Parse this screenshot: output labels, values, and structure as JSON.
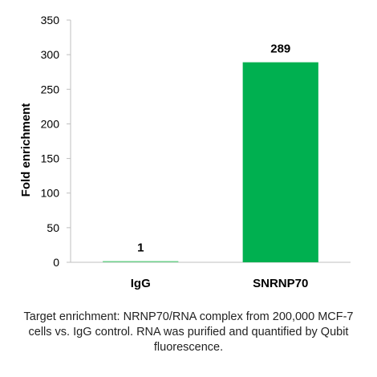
{
  "chart_data": {
    "type": "bar",
    "categories": [
      "IgG",
      "SNRNP70"
    ],
    "values": [
      1,
      289
    ],
    "data_labels": [
      "1",
      "289"
    ],
    "ylabel": "Fold enrichment",
    "xlabel": "",
    "ylim": [
      0,
      350
    ],
    "yticks": [
      0,
      50,
      100,
      150,
      200,
      250,
      300,
      350
    ],
    "ytick_labels": [
      "0",
      "50",
      "100",
      "150",
      "200",
      "250",
      "300",
      "350"
    ],
    "grid": false,
    "bar_color": "#00b050",
    "baseline_bar_color": "#6fd08c"
  },
  "caption": "Target enrichment: NRNP70/RNA complex from 200,000 MCF-7 cells vs. IgG control. RNA was purified and quantified by Qubit fluorescence."
}
